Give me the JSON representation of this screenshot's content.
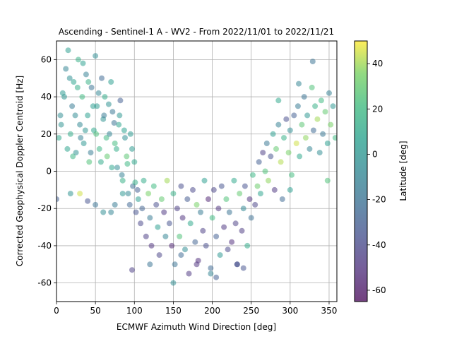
{
  "chart_data": {
    "type": "scatter",
    "title": "Ascending - Sentinel-1 A - WV2 - From 2022/11/01 to 2022/11/21",
    "xlabel": "ECMWF Azimuth Wind Direction [deg]",
    "ylabel": "Corrected Geophysical Doppler Centroid [Hz]",
    "xlim": [
      0,
      360
    ],
    "ylim": [
      -70,
      70
    ],
    "xticks": [
      0,
      50,
      100,
      150,
      200,
      250,
      300,
      350
    ],
    "yticks": [
      -60,
      -40,
      -20,
      0,
      20,
      40,
      60
    ],
    "grid": true,
    "colorbar": {
      "label": "Latitude [deg]",
      "range": [
        -65,
        50
      ],
      "ticks": [
        -60,
        -40,
        -20,
        0,
        20,
        40
      ],
      "colormap": "viridis"
    },
    "point_alpha": 0.5,
    "series": [
      {
        "points": [
          [
            5,
            30,
            -5
          ],
          [
            8,
            42,
            2
          ],
          [
            12,
            55,
            -10
          ],
          [
            15,
            65,
            5
          ],
          [
            18,
            20,
            12
          ],
          [
            20,
            35,
            -15
          ],
          [
            22,
            48,
            8
          ],
          [
            25,
            10,
            -3
          ],
          [
            28,
            60,
            15
          ],
          [
            30,
            25,
            -8
          ],
          [
            33,
            40,
            20
          ],
          [
            35,
            15,
            0
          ],
          [
            38,
            52,
            -12
          ],
          [
            40,
            30,
            6
          ],
          [
            42,
            5,
            25
          ],
          [
            45,
            45,
            -20
          ],
          [
            48,
            22,
            10
          ],
          [
            50,
            62,
            -5
          ],
          [
            52,
            35,
            3
          ],
          [
            55,
            12,
            18
          ],
          [
            58,
            50,
            -25
          ],
          [
            60,
            28,
            -2
          ],
          [
            62,
            40,
            12
          ],
          [
            65,
            8,
            30
          ],
          [
            68,
            20,
            -10
          ],
          [
            70,
            48,
            5
          ],
          [
            72,
            32,
            -18
          ],
          [
            75,
            15,
            22
          ],
          [
            78,
            2,
            -6
          ],
          [
            80,
            25,
            8
          ],
          [
            82,
            38,
            -30
          ],
          [
            85,
            -5,
            15
          ],
          [
            88,
            18,
            -4
          ],
          [
            90,
            8,
            28
          ],
          [
            92,
            -12,
            -8
          ],
          [
            95,
            20,
            2
          ],
          [
            98,
            -8,
            -22
          ],
          [
            100,
            5,
            10
          ],
          [
            102,
            -22,
            -35
          ],
          [
            105,
            -15,
            5
          ],
          [
            3,
            18,
            10
          ],
          [
            6,
            25,
            -2
          ],
          [
            10,
            40,
            0
          ],
          [
            14,
            12,
            8
          ],
          [
            17,
            50,
            -4
          ],
          [
            21,
            8,
            18
          ],
          [
            24,
            30,
            -6
          ],
          [
            27,
            45,
            14
          ],
          [
            31,
            18,
            -12
          ],
          [
            34,
            58,
            6
          ],
          [
            37,
            22,
            -1
          ],
          [
            41,
            48,
            16
          ],
          [
            44,
            10,
            -14
          ],
          [
            47,
            35,
            4
          ],
          [
            51,
            20,
            24
          ],
          [
            54,
            42,
            -9
          ],
          [
            57,
            5,
            11
          ],
          [
            61,
            30,
            -16
          ],
          [
            64,
            18,
            20
          ],
          [
            67,
            36,
            -3
          ],
          [
            71,
            2,
            9
          ],
          [
            74,
            26,
            -20
          ],
          [
            77,
            12,
            13
          ],
          [
            81,
            30,
            0
          ],
          [
            84,
            -2,
            -12
          ],
          [
            87,
            22,
            7
          ],
          [
            91,
            4,
            19
          ],
          [
            94,
            -18,
            -26
          ],
          [
            97,
            12,
            3
          ],
          [
            101,
            -6,
            14
          ],
          [
            104,
            -10,
            -30
          ],
          [
            108,
            -28,
            -40
          ],
          [
            110,
            -20,
            -28
          ],
          [
            112,
            -5,
            12
          ],
          [
            115,
            -35,
            -45
          ],
          [
            118,
            -12,
            35
          ],
          [
            120,
            -25,
            -15
          ],
          [
            122,
            -40,
            -50
          ],
          [
            125,
            -8,
            20
          ],
          [
            128,
            -18,
            -38
          ],
          [
            130,
            -30,
            5
          ],
          [
            132,
            -45,
            -42
          ],
          [
            135,
            -15,
            30
          ],
          [
            138,
            -22,
            -48
          ],
          [
            140,
            -35,
            -10
          ],
          [
            142,
            -5,
            40
          ],
          [
            145,
            -28,
            -35
          ],
          [
            148,
            -40,
            -55
          ],
          [
            150,
            -12,
            15
          ],
          [
            152,
            -50,
            -20
          ],
          [
            155,
            -20,
            -45
          ],
          [
            158,
            -35,
            25
          ],
          [
            160,
            -8,
            -38
          ],
          [
            162,
            -25,
            -50
          ],
          [
            165,
            -42,
            -5
          ],
          [
            168,
            -15,
            -32
          ],
          [
            170,
            -55,
            -48
          ],
          [
            172,
            -28,
            10
          ],
          [
            175,
            -10,
            -40
          ],
          [
            178,
            -38,
            -28
          ],
          [
            180,
            -18,
            35
          ],
          [
            182,
            -48,
            -52
          ],
          [
            185,
            -22,
            -15
          ],
          [
            188,
            -32,
            -45
          ],
          [
            190,
            -5,
            5
          ],
          [
            192,
            -40,
            -38
          ],
          [
            195,
            -15,
            -55
          ],
          [
            198,
            -52,
            -25
          ],
          [
            200,
            -25,
            20
          ],
          [
            202,
            -10,
            -42
          ],
          [
            205,
            -35,
            -30
          ],
          [
            208,
            -20,
            -50
          ],
          [
            210,
            -45,
            0
          ],
          [
            212,
            -8,
            -35
          ],
          [
            215,
            -30,
            -48
          ],
          [
            218,
            -15,
            25
          ],
          [
            220,
            -42,
            -40
          ],
          [
            222,
            -22,
            -20
          ],
          [
            225,
            -38,
            -52
          ],
          [
            228,
            -5,
            10
          ],
          [
            230,
            -28,
            -44
          ],
          [
            232,
            -50,
            -30
          ],
          [
            235,
            -12,
            30
          ],
          [
            238,
            -32,
            -46
          ],
          [
            240,
            -20,
            -8
          ],
          [
            242,
            -8,
            -36
          ],
          [
            245,
            -40,
            12
          ],
          [
            248,
            -15,
            -50
          ],
          [
            250,
            -25,
            -22
          ],
          [
            252,
            -2,
            18
          ],
          [
            255,
            -18,
            -42
          ],
          [
            258,
            -8,
            32
          ],
          [
            260,
            5,
            -30
          ],
          [
            262,
            -12,
            8
          ],
          [
            265,
            10,
            -45
          ],
          [
            268,
            0,
            25
          ],
          [
            270,
            15,
            -18
          ],
          [
            272,
            -5,
            38
          ],
          [
            275,
            8,
            -35
          ],
          [
            278,
            20,
            5
          ],
          [
            280,
            -10,
            -48
          ],
          [
            282,
            12,
            30
          ],
          [
            285,
            25,
            -12
          ],
          [
            288,
            5,
            42
          ],
          [
            290,
            -15,
            -25
          ],
          [
            292,
            18,
            15
          ],
          [
            295,
            28,
            -38
          ],
          [
            298,
            10,
            35
          ],
          [
            300,
            22,
            -5
          ],
          [
            302,
            -2,
            22
          ],
          [
            305,
            30,
            -30
          ],
          [
            308,
            15,
            45
          ],
          [
            310,
            35,
            -15
          ],
          [
            312,
            8,
            10
          ],
          [
            315,
            25,
            28
          ],
          [
            318,
            40,
            -20
          ],
          [
            320,
            18,
            38
          ],
          [
            322,
            30,
            0
          ],
          [
            325,
            12,
            -10
          ],
          [
            328,
            45,
            25
          ],
          [
            330,
            22,
            -25
          ],
          [
            332,
            35,
            15
          ],
          [
            335,
            28,
            40
          ],
          [
            338,
            10,
            -5
          ],
          [
            340,
            38,
            20
          ],
          [
            342,
            20,
            -18
          ],
          [
            345,
            32,
            30
          ],
          [
            348,
            15,
            5
          ],
          [
            350,
            42,
            -12
          ],
          [
            352,
            25,
            35
          ],
          [
            355,
            35,
            0
          ],
          [
            358,
            18,
            20
          ],
          [
            329,
            59,
            -20
          ],
          [
            311,
            47,
            -10
          ],
          [
            285,
            38,
            10
          ],
          [
            300,
            -10,
            5
          ],
          [
            348,
            -5,
            25
          ],
          [
            150,
            -60,
            -5
          ],
          [
            198,
            -55,
            -10
          ],
          [
            205,
            -57,
            -30
          ],
          [
            232,
            -50,
            -40
          ],
          [
            240,
            -52,
            -35
          ],
          [
            120,
            -50,
            -20
          ],
          [
            97,
            -53,
            -45
          ],
          [
            180,
            -50,
            -50
          ],
          [
            160,
            -45,
            -25
          ],
          [
            70,
            -22,
            -10
          ],
          [
            60,
            -22,
            -5
          ],
          [
            0,
            -15,
            -30
          ],
          [
            18,
            -12,
            -2
          ],
          [
            30,
            -12,
            45
          ],
          [
            40,
            -16,
            -35
          ],
          [
            50,
            -18,
            -20
          ],
          [
            75,
            -18,
            -15
          ],
          [
            85,
            -12,
            0
          ]
        ]
      }
    ]
  }
}
